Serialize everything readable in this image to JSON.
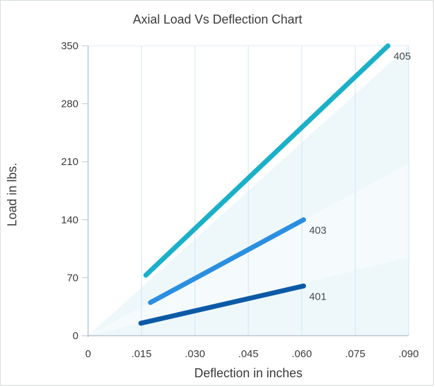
{
  "chart_data": {
    "type": "line",
    "title": "Axial Load Vs Deflection Chart",
    "xlabel": "Deflection in inches",
    "ylabel": "Load in lbs.",
    "xlim": [
      0,
      0.09
    ],
    "ylim": [
      0,
      350
    ],
    "x_ticks": [
      "0",
      ".015",
      ".030",
      ".045",
      ".060",
      ".075",
      ".090"
    ],
    "x_tick_values": [
      0,
      0.015,
      0.03,
      0.045,
      0.06,
      0.075,
      0.09
    ],
    "y_ticks": [
      "0",
      "70",
      "140",
      "210",
      "280",
      "350"
    ],
    "y_tick_values": [
      0,
      70,
      140,
      210,
      280,
      350
    ],
    "grid": "vertical",
    "series": [
      {
        "name": "401",
        "color": "#0c5aa6",
        "x": [
          0.0148,
          0.0605
        ],
        "y": [
          15,
          60
        ]
      },
      {
        "name": "403",
        "color": "#2b8fe0",
        "x": [
          0.0175,
          0.0605
        ],
        "y": [
          40,
          140
        ]
      },
      {
        "name": "405",
        "color": "#1ab0c9",
        "x": [
          0.0162,
          0.0842
        ],
        "y": [
          73,
          350
        ]
      }
    ]
  }
}
